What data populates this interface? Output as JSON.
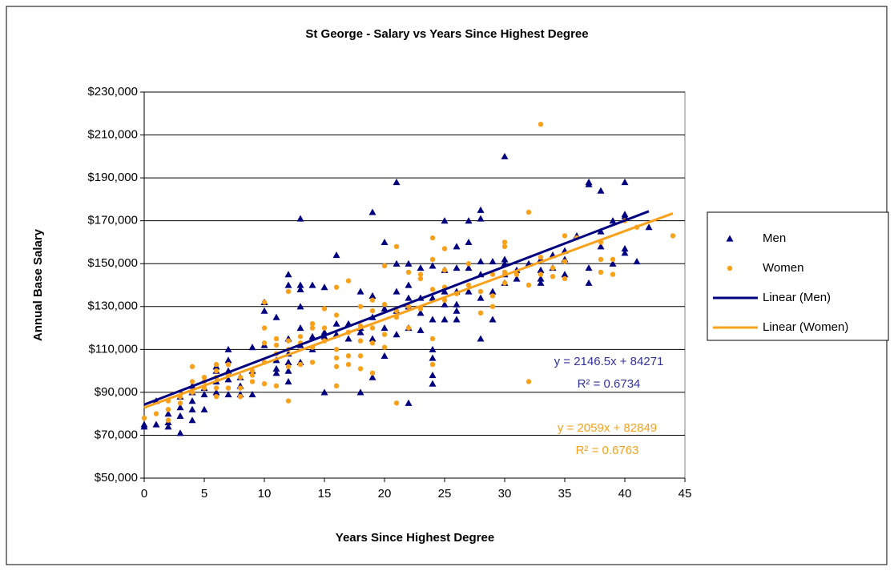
{
  "chart_data": {
    "type": "scatter",
    "title": "St George - Salary vs Years Since Highest Degree",
    "x_label": "Years Since Highest Degree",
    "y_label": "Annual Base Salary",
    "xlim": [
      0,
      45
    ],
    "xticks": [
      0,
      5,
      10,
      15,
      20,
      25,
      30,
      35,
      40,
      45
    ],
    "ylim": [
      50000,
      230000
    ],
    "yticks": [
      {
        "value": 50000,
        "label": "$50,000"
      },
      {
        "value": 70000,
        "label": "$70,000"
      },
      {
        "value": 90000,
        "label": "$90,000"
      },
      {
        "value": 110000,
        "label": "$110,000"
      },
      {
        "value": 130000,
        "label": "$130,000"
      },
      {
        "value": 150000,
        "label": "$150,000"
      },
      {
        "value": 170000,
        "label": "$170,000"
      },
      {
        "value": 190000,
        "label": "$190,000"
      },
      {
        "value": 210000,
        "label": "$210,000"
      },
      {
        "value": 230000,
        "label": "$230,000"
      }
    ],
    "grid": true,
    "legend": "right",
    "series": [
      {
        "name": "Men",
        "color": "#000080",
        "marker": "triangle",
        "x": [
          0,
          0,
          1,
          1,
          2,
          2,
          2,
          3,
          3,
          3,
          3,
          4,
          4,
          4,
          4,
          4,
          5,
          5,
          5,
          6,
          6,
          6,
          6,
          7,
          7,
          7,
          7,
          7,
          8,
          8,
          8,
          9,
          9,
          9,
          10,
          10,
          10,
          11,
          11,
          11,
          11,
          12,
          12,
          12,
          12,
          12,
          12,
          12,
          13,
          13,
          13,
          13,
          13,
          13,
          13,
          14,
          14,
          14,
          15,
          15,
          15,
          15,
          16,
          16,
          16,
          17,
          17,
          18,
          18,
          18,
          18,
          19,
          19,
          19,
          19,
          19,
          20,
          20,
          20,
          20,
          21,
          21,
          21,
          21,
          21,
          22,
          22,
          22,
          22,
          22,
          22,
          23,
          23,
          23,
          23,
          24,
          24,
          24,
          24,
          24,
          24,
          24,
          25,
          25,
          25,
          25,
          25,
          26,
          26,
          26,
          26,
          26,
          26,
          27,
          27,
          27,
          27,
          28,
          28,
          28,
          28,
          28,
          28,
          29,
          29,
          29,
          30,
          30,
          30,
          30,
          30,
          31,
          31,
          32,
          33,
          33,
          33,
          33,
          34,
          34,
          35,
          35,
          35,
          36,
          37,
          37,
          37,
          37,
          38,
          38,
          38,
          39,
          39,
          40,
          40,
          40,
          40,
          40,
          41,
          42
        ],
        "values": [
          74000,
          75000,
          75000,
          86000,
          74000,
          76000,
          80000,
          71000,
          79000,
          83000,
          88000,
          77000,
          82000,
          86000,
          90000,
          93000,
          82000,
          89000,
          92000,
          90000,
          95000,
          100000,
          102000,
          89000,
          96000,
          100000,
          105000,
          110000,
          89000,
          93000,
          97000,
          89000,
          100000,
          111000,
          112000,
          128000,
          132000,
          99000,
          101000,
          105000,
          125000,
          95000,
          100000,
          104000,
          108000,
          115000,
          140000,
          145000,
          104000,
          112000,
          120000,
          130000,
          138000,
          140000,
          171000,
          110000,
          116000,
          140000,
          90000,
          116000,
          118000,
          139000,
          117000,
          122000,
          154000,
          115000,
          122000,
          90000,
          118000,
          120000,
          137000,
          97000,
          115000,
          125000,
          135000,
          174000,
          107000,
          120000,
          129000,
          160000,
          117000,
          128000,
          137000,
          150000,
          188000,
          85000,
          120000,
          130000,
          134000,
          140000,
          150000,
          119000,
          127000,
          134000,
          148000,
          94000,
          98000,
          106000,
          110000,
          124000,
          134000,
          149000,
          124000,
          131000,
          137000,
          147000,
          170000,
          124000,
          128000,
          131000,
          137000,
          148000,
          158000,
          137000,
          148000,
          160000,
          170000,
          115000,
          134000,
          145000,
          151000,
          171000,
          175000,
          124000,
          137000,
          151000,
          141000,
          145000,
          150000,
          152000,
          200000,
          143000,
          147000,
          150000,
          141000,
          143000,
          147000,
          152000,
          148000,
          154000,
          145000,
          152000,
          156000,
          163000,
          141000,
          148000,
          187000,
          188000,
          158000,
          165000,
          184000,
          150000,
          170000,
          155000,
          157000,
          172000,
          173000,
          188000,
          151000,
          167000
        ]
      },
      {
        "name": "Women",
        "color": "#f9a11b",
        "marker": "circle",
        "x": [
          0,
          1,
          2,
          2,
          2,
          3,
          3,
          4,
          4,
          4,
          5,
          5,
          5,
          6,
          6,
          6,
          6,
          6,
          7,
          7,
          7,
          8,
          8,
          8,
          9,
          9,
          9,
          10,
          10,
          10,
          10,
          10,
          11,
          11,
          11,
          11,
          12,
          12,
          12,
          12,
          12,
          13,
          13,
          13,
          14,
          14,
          14,
          14,
          15,
          15,
          15,
          16,
          16,
          16,
          16,
          16,
          16,
          17,
          17,
          17,
          17,
          18,
          18,
          18,
          18,
          18,
          19,
          19,
          19,
          19,
          19,
          20,
          20,
          20,
          20,
          21,
          21,
          21,
          21,
          22,
          22,
          22,
          23,
          23,
          23,
          24,
          24,
          24,
          24,
          24,
          25,
          25,
          25,
          25,
          26,
          27,
          27,
          28,
          28,
          29,
          29,
          29,
          30,
          30,
          30,
          30,
          31,
          32,
          32,
          32,
          33,
          33,
          33,
          34,
          34,
          35,
          35,
          35,
          36,
          38,
          38,
          38,
          39,
          39,
          40,
          41,
          44
        ],
        "values": [
          78000,
          80000,
          77000,
          82000,
          86000,
          85000,
          88000,
          90000,
          95000,
          102000,
          92000,
          95000,
          97000,
          88000,
          92000,
          97000,
          100000,
          103000,
          92000,
          98000,
          103000,
          88000,
          92000,
          97000,
          95000,
          98000,
          100000,
          94000,
          104000,
          113000,
          120000,
          132000,
          93000,
          108000,
          112000,
          115000,
          86000,
          102000,
          110000,
          114000,
          137000,
          103000,
          113000,
          116000,
          104000,
          111000,
          120000,
          122000,
          114000,
          120000,
          129000,
          93000,
          102000,
          106000,
          110000,
          126000,
          139000,
          103000,
          107000,
          118000,
          142000,
          101000,
          107000,
          114000,
          121000,
          130000,
          99000,
          113000,
          120000,
          128000,
          133000,
          111000,
          117000,
          131000,
          149000,
          85000,
          125000,
          128000,
          158000,
          120000,
          130000,
          146000,
          129000,
          143000,
          145000,
          103000,
          115000,
          138000,
          152000,
          162000,
          133000,
          139000,
          147000,
          157000,
          136000,
          140000,
          150000,
          127000,
          137000,
          130000,
          135000,
          145000,
          141000,
          146000,
          158000,
          160000,
          145000,
          95000,
          140000,
          174000,
          145000,
          153000,
          215000,
          144000,
          148000,
          143000,
          151000,
          163000,
          162000,
          146000,
          152000,
          160000,
          145000,
          152000,
          170000,
          167000,
          163000
        ]
      }
    ],
    "trendlines": [
      {
        "name": "Linear (Men)",
        "color": "#000080",
        "slope": 2146.5,
        "intercept": 84271,
        "x_range": [
          0,
          42
        ],
        "equation": "y = 2146.5x + 84271",
        "r_squared": "R² = 0.6734",
        "label_color": "#333399"
      },
      {
        "name": "Linear (Women)",
        "color": "#f9a11b",
        "slope": 2059,
        "intercept": 82849,
        "x_range": [
          0,
          44
        ],
        "equation": "y = 2059x + 82849",
        "r_squared": "R² = 0.6763",
        "label_color": "#f9a11b"
      }
    ]
  }
}
